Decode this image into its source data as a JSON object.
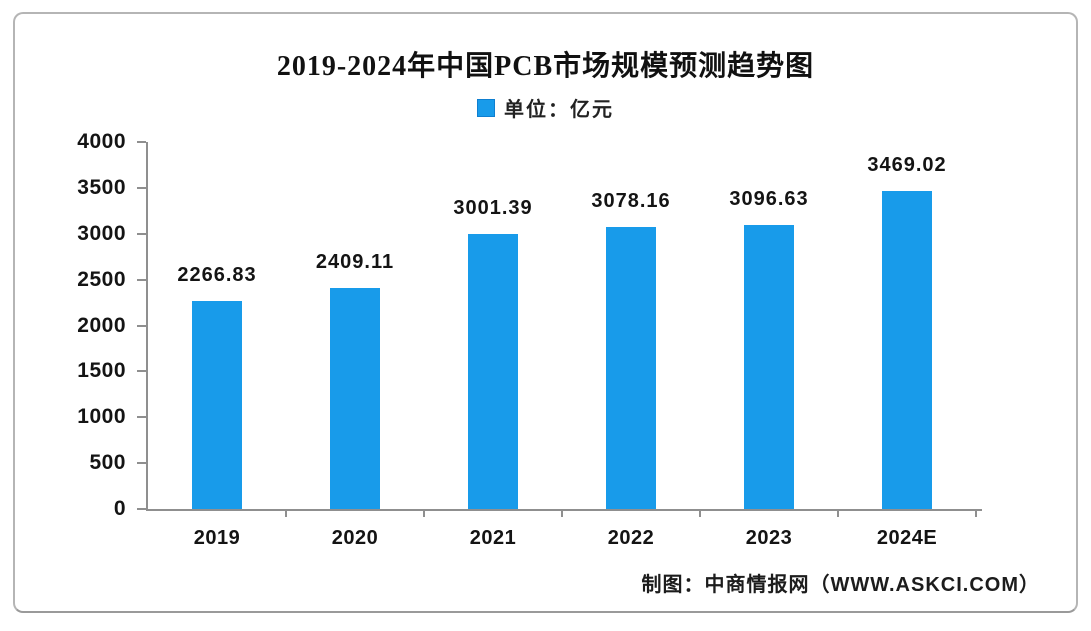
{
  "page": {
    "background": "#ffffff",
    "frame_border_color": "#b5b5b5"
  },
  "chart_data": {
    "type": "bar",
    "title": "2019-2024年中国PCB市场规模预测趋势图",
    "legend": {
      "label": "单位：亿元",
      "position": "top",
      "swatch_color": "#189bea"
    },
    "categories": [
      "2019",
      "2020",
      "2021",
      "2022",
      "2023",
      "2024E"
    ],
    "values": [
      2266.83,
      2409.11,
      3001.39,
      3078.16,
      3096.63,
      3469.02
    ],
    "value_labels": [
      "2266.83",
      "2409.11",
      "3001.39",
      "3078.16",
      "3096.63",
      "3469.02"
    ],
    "xlabel": "",
    "ylabel": "",
    "ylim": [
      0,
      4000
    ],
    "yticks": [
      0,
      500,
      1000,
      1500,
      2000,
      2500,
      3000,
      3500,
      4000
    ],
    "grid": false,
    "bar_color": "#189bea",
    "axis_color": "#8f8f8f"
  },
  "footer": {
    "credit": "制图：中商情报网（WWW.ASKCI.COM）"
  }
}
